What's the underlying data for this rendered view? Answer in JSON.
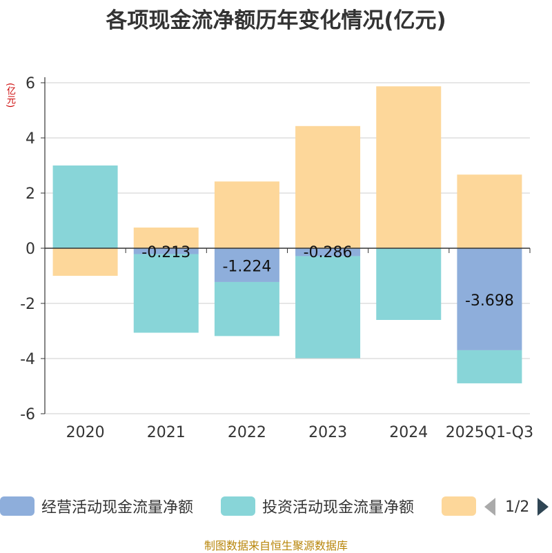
{
  "title": "各项现金流净额历年变化情况(亿元)",
  "unit_label": "(亿元)",
  "source": "制图数据来自恒生聚源数据库",
  "legend": {
    "items": [
      {
        "label": "经营活动现金流量净额",
        "color": "#8eaedb"
      },
      {
        "label": "投资活动现金流量净额",
        "color": "#88d5d8"
      },
      {
        "label": "",
        "color": "#fdd79a"
      }
    ],
    "page": "1/2"
  },
  "chart_data": {
    "type": "bar",
    "stacked": true,
    "categories": [
      "2020",
      "2021",
      "2022",
      "2023",
      "2024",
      "2025Q1-Q3"
    ],
    "ylim": [
      -6,
      6
    ],
    "yticks": [
      -6,
      -4,
      -2,
      0,
      2,
      4,
      6
    ],
    "grid": true,
    "legend_position": "bottom",
    "series": [
      {
        "name": "经营活动现金流量净额",
        "color": "#8eaedb",
        "values": [
          0.0,
          -0.213,
          -1.224,
          -0.286,
          0.0,
          -3.698
        ],
        "labels": [
          "",
          "-0.213",
          "-1.224",
          "-0.286",
          "",
          "-3.698"
        ]
      },
      {
        "name": "投资活动现金流量净额",
        "color": "#88d5d8",
        "values": [
          3.0,
          -2.85,
          -1.96,
          -3.7,
          -2.6,
          -1.2
        ]
      },
      {
        "name": "",
        "color": "#fdd79a",
        "values": [
          -1.0,
          0.75,
          2.42,
          4.43,
          5.87,
          2.67
        ]
      }
    ]
  }
}
